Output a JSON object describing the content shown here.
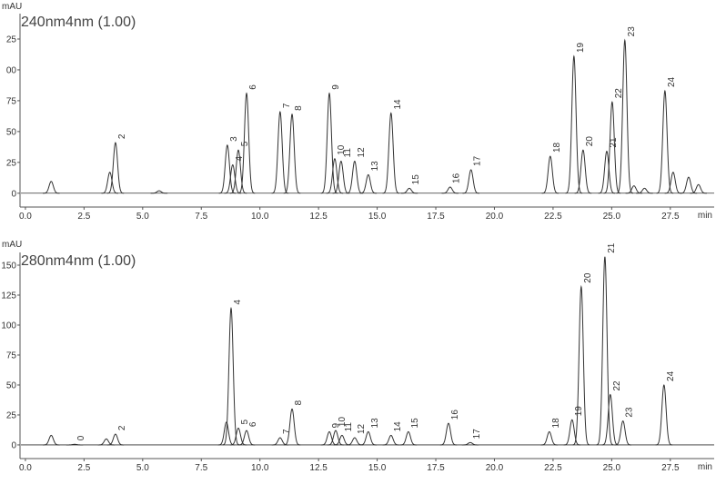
{
  "chart_data": [
    {
      "type": "peaks",
      "title": "240nm4nm (1.00)",
      "y_label": "mAU",
      "x_label": "min",
      "xlim": [
        -0.23,
        29.37
      ],
      "ylim": [
        -11.2,
        145.6
      ],
      "xticks": [
        {
          "value": 0,
          "label": "0.0"
        },
        2.5,
        {
          "value": 5,
          "label": "5.0"
        },
        7.5,
        {
          "value": 10,
          "label": "10.0"
        },
        12.5,
        {
          "value": 15,
          "label": "15.0"
        },
        17.5,
        {
          "value": 20,
          "label": "20.0"
        },
        22.5,
        {
          "value": 25,
          "label": "25.0"
        },
        27.5
      ],
      "yticks": [
        0,
        25,
        50,
        75,
        {
          "value": 100,
          "label": "00"
        },
        {
          "value": 125,
          "label": "25"
        }
      ],
      "x": [
        1.1,
        3.6,
        3.84,
        5.7,
        8.61,
        8.84,
        9.08,
        9.43,
        10.86,
        11.37,
        12.96,
        13.19,
        13.46,
        14.04,
        14.62,
        15.59,
        16.37,
        18.11,
        19.0,
        22.38,
        23.39,
        23.78,
        24.79,
        25.02,
        25.56,
        25.95,
        26.4,
        27.27,
        27.62,
        28.28,
        28.7
      ],
      "values": [
        9.6,
        17,
        41,
        2,
        39,
        23,
        35,
        81,
        66,
        64,
        81,
        28,
        26,
        26,
        15,
        65,
        4,
        5,
        19,
        30,
        111,
        35,
        34,
        74,
        124,
        6,
        4,
        83,
        17,
        13,
        7
      ],
      "labels": [
        null,
        null,
        "2",
        null,
        "3",
        "4",
        "5",
        "6",
        "7",
        "8",
        "9",
        "10",
        "11",
        "12",
        "13",
        "14",
        "15",
        "16",
        "17",
        "18",
        "19",
        "20",
        "21",
        "22",
        "23",
        null,
        null,
        "24",
        null,
        null,
        null
      ]
    },
    {
      "type": "peaks",
      "title": "280nm4nm (1.00)",
      "y_label": "mAU",
      "x_label": "min",
      "xlim": [
        -0.23,
        29.37
      ],
      "ylim": [
        -11.4,
        160.6
      ],
      "xticks": [
        {
          "value": 0,
          "label": "0.0"
        },
        2.5,
        {
          "value": 5,
          "label": "5.0"
        },
        7.5,
        {
          "value": 10,
          "label": "10.0"
        },
        12.5,
        {
          "value": 15,
          "label": "15.0"
        },
        17.5,
        {
          "value": 20,
          "label": "20.0"
        },
        22.5,
        {
          "value": 25,
          "label": "25.0"
        },
        27.5
      ],
      "yticks": [
        0,
        25,
        50,
        75,
        100,
        125,
        150
      ],
      "x": [
        1.1,
        2.1,
        3.45,
        3.84,
        8.57,
        8.77,
        9.08,
        9.43,
        10.86,
        11.37,
        12.96,
        13.23,
        13.5,
        14.04,
        14.62,
        15.59,
        16.33,
        18.04,
        18.97,
        22.34,
        23.31,
        23.7,
        24.71,
        24.94,
        25.48,
        27.23
      ],
      "values": [
        8,
        0.5,
        5,
        9,
        19,
        114,
        14,
        12,
        6,
        30,
        11,
        12,
        8,
        6,
        11,
        8,
        11,
        18,
        2,
        11,
        21,
        132,
        157,
        42,
        20,
        50
      ],
      "labels": [
        null,
        "0",
        null,
        "2",
        null,
        "4",
        "5",
        "6",
        "7",
        "8",
        "9",
        "10",
        "11",
        "12",
        "13",
        "14",
        "15",
        "16",
        "17",
        "18",
        "19",
        "20",
        "21",
        "22",
        "23",
        "24"
      ]
    }
  ]
}
